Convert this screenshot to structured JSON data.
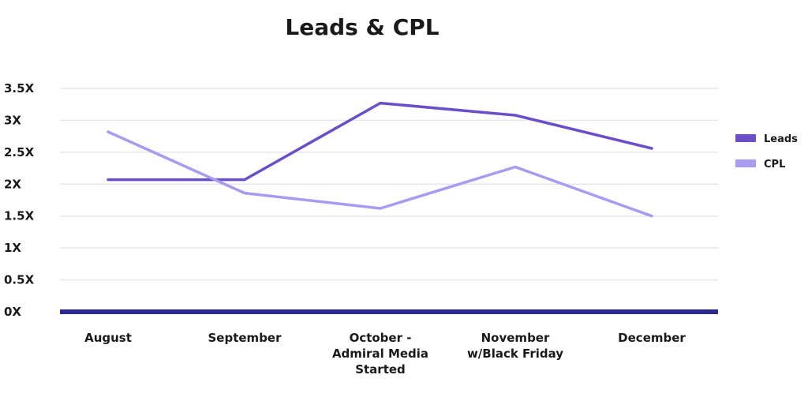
{
  "chart_data": {
    "type": "line",
    "title": "Leads & CPL",
    "xlabel": "",
    "ylabel": "",
    "categories": [
      [
        "August"
      ],
      [
        "September"
      ],
      [
        "October -",
        "Admiral Media",
        "Started"
      ],
      [
        "November",
        "w/Black Friday"
      ],
      [
        "December"
      ]
    ],
    "y_ticks": [
      "0X",
      "0.5X",
      "1X",
      "1.5X",
      "2X",
      "2.5X",
      "3X",
      "3.5X"
    ],
    "y_tick_values": [
      0,
      0.5,
      1,
      1.5,
      2,
      2.5,
      3,
      3.5
    ],
    "ylim": [
      0,
      3.5
    ],
    "grid": true,
    "legend_position": "right",
    "series": [
      {
        "name": "Leads",
        "color": "#6b4fc8",
        "values": [
          2.07,
          2.07,
          3.27,
          3.08,
          2.56
        ]
      },
      {
        "name": "CPL",
        "color": "#a89cf0",
        "values": [
          2.82,
          1.86,
          1.62,
          2.27,
          1.5
        ]
      }
    ],
    "colors": {
      "baseline": "#2b2a8c",
      "grid": "#e6e6ec"
    }
  }
}
